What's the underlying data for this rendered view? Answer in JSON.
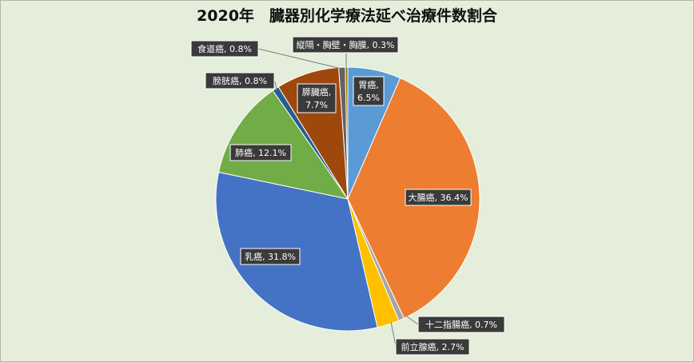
{
  "chart_data": {
    "type": "pie",
    "title": "2020年　臓器別化学療法延べ治療件数割合",
    "slices": [
      {
        "name": "胃癌",
        "value": 6.5,
        "label_lines": [
          "胃癌,",
          "6.5%"
        ],
        "color": "#5b9bd5"
      },
      {
        "name": "大腸癌",
        "value": 36.4,
        "label_lines": [
          "大腸癌, 36.4%"
        ],
        "color": "#ed7d31"
      },
      {
        "name": "十二指腸癌",
        "value": 0.7,
        "label_lines": [
          "十二指腸癌, 0.7%"
        ],
        "color": "#a5a5a5"
      },
      {
        "name": "前立腺癌",
        "value": 2.7,
        "label_lines": [
          "前立腺癌, 2.7%"
        ],
        "color": "#ffc000"
      },
      {
        "name": "乳癌",
        "value": 31.8,
        "label_lines": [
          "乳癌, 31.8%"
        ],
        "color": "#4472c4"
      },
      {
        "name": "肺癌",
        "value": 12.1,
        "label_lines": [
          "肺癌, 12.1%"
        ],
        "color": "#70ad47"
      },
      {
        "name": "膀胱癌",
        "value": 0.8,
        "label_lines": [
          "膀胱癌, 0.8%"
        ],
        "color": "#255e91"
      },
      {
        "name": "膵臓癌",
        "value": 7.7,
        "label_lines": [
          "膵臓癌,",
          "7.7%"
        ],
        "color": "#9e480e"
      },
      {
        "name": "食道癌",
        "value": 0.8,
        "label_lines": [
          "食道癌, 0.8%"
        ],
        "color": "#636363"
      },
      {
        "name": "縦隔・胸壁・胸膜",
        "value": 0.3,
        "label_lines": [
          "縦隔・胸壁・胸膜, 0.3%"
        ],
        "color": "#997300"
      }
    ]
  }
}
